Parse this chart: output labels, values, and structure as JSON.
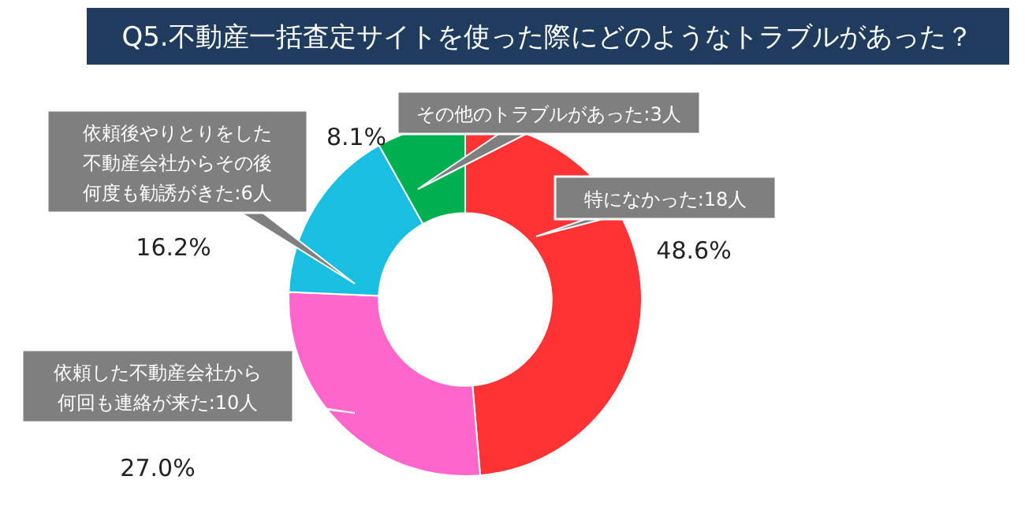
{
  "chart_data": {
    "type": "donut",
    "title": "Q5.不動産一括査定サイトを使った際にどのようなトラブルがあった？",
    "categories": [
      "特になかった:18人",
      "依頼した不動産会社から何回も連絡が来た:10人",
      "依頼後やりとりをした不動産会社からその後何度も勧誘がきた:6人",
      "その他のトラブルがあった:3人"
    ],
    "values": [
      48.6,
      27.0,
      16.2,
      8.1
    ],
    "value_labels": [
      "48.6%",
      "27.0%",
      "16.2%",
      "8.1%"
    ],
    "colors": [
      "#ff3333",
      "#ff66cc",
      "#19bfe3",
      "#00b050"
    ]
  }
}
